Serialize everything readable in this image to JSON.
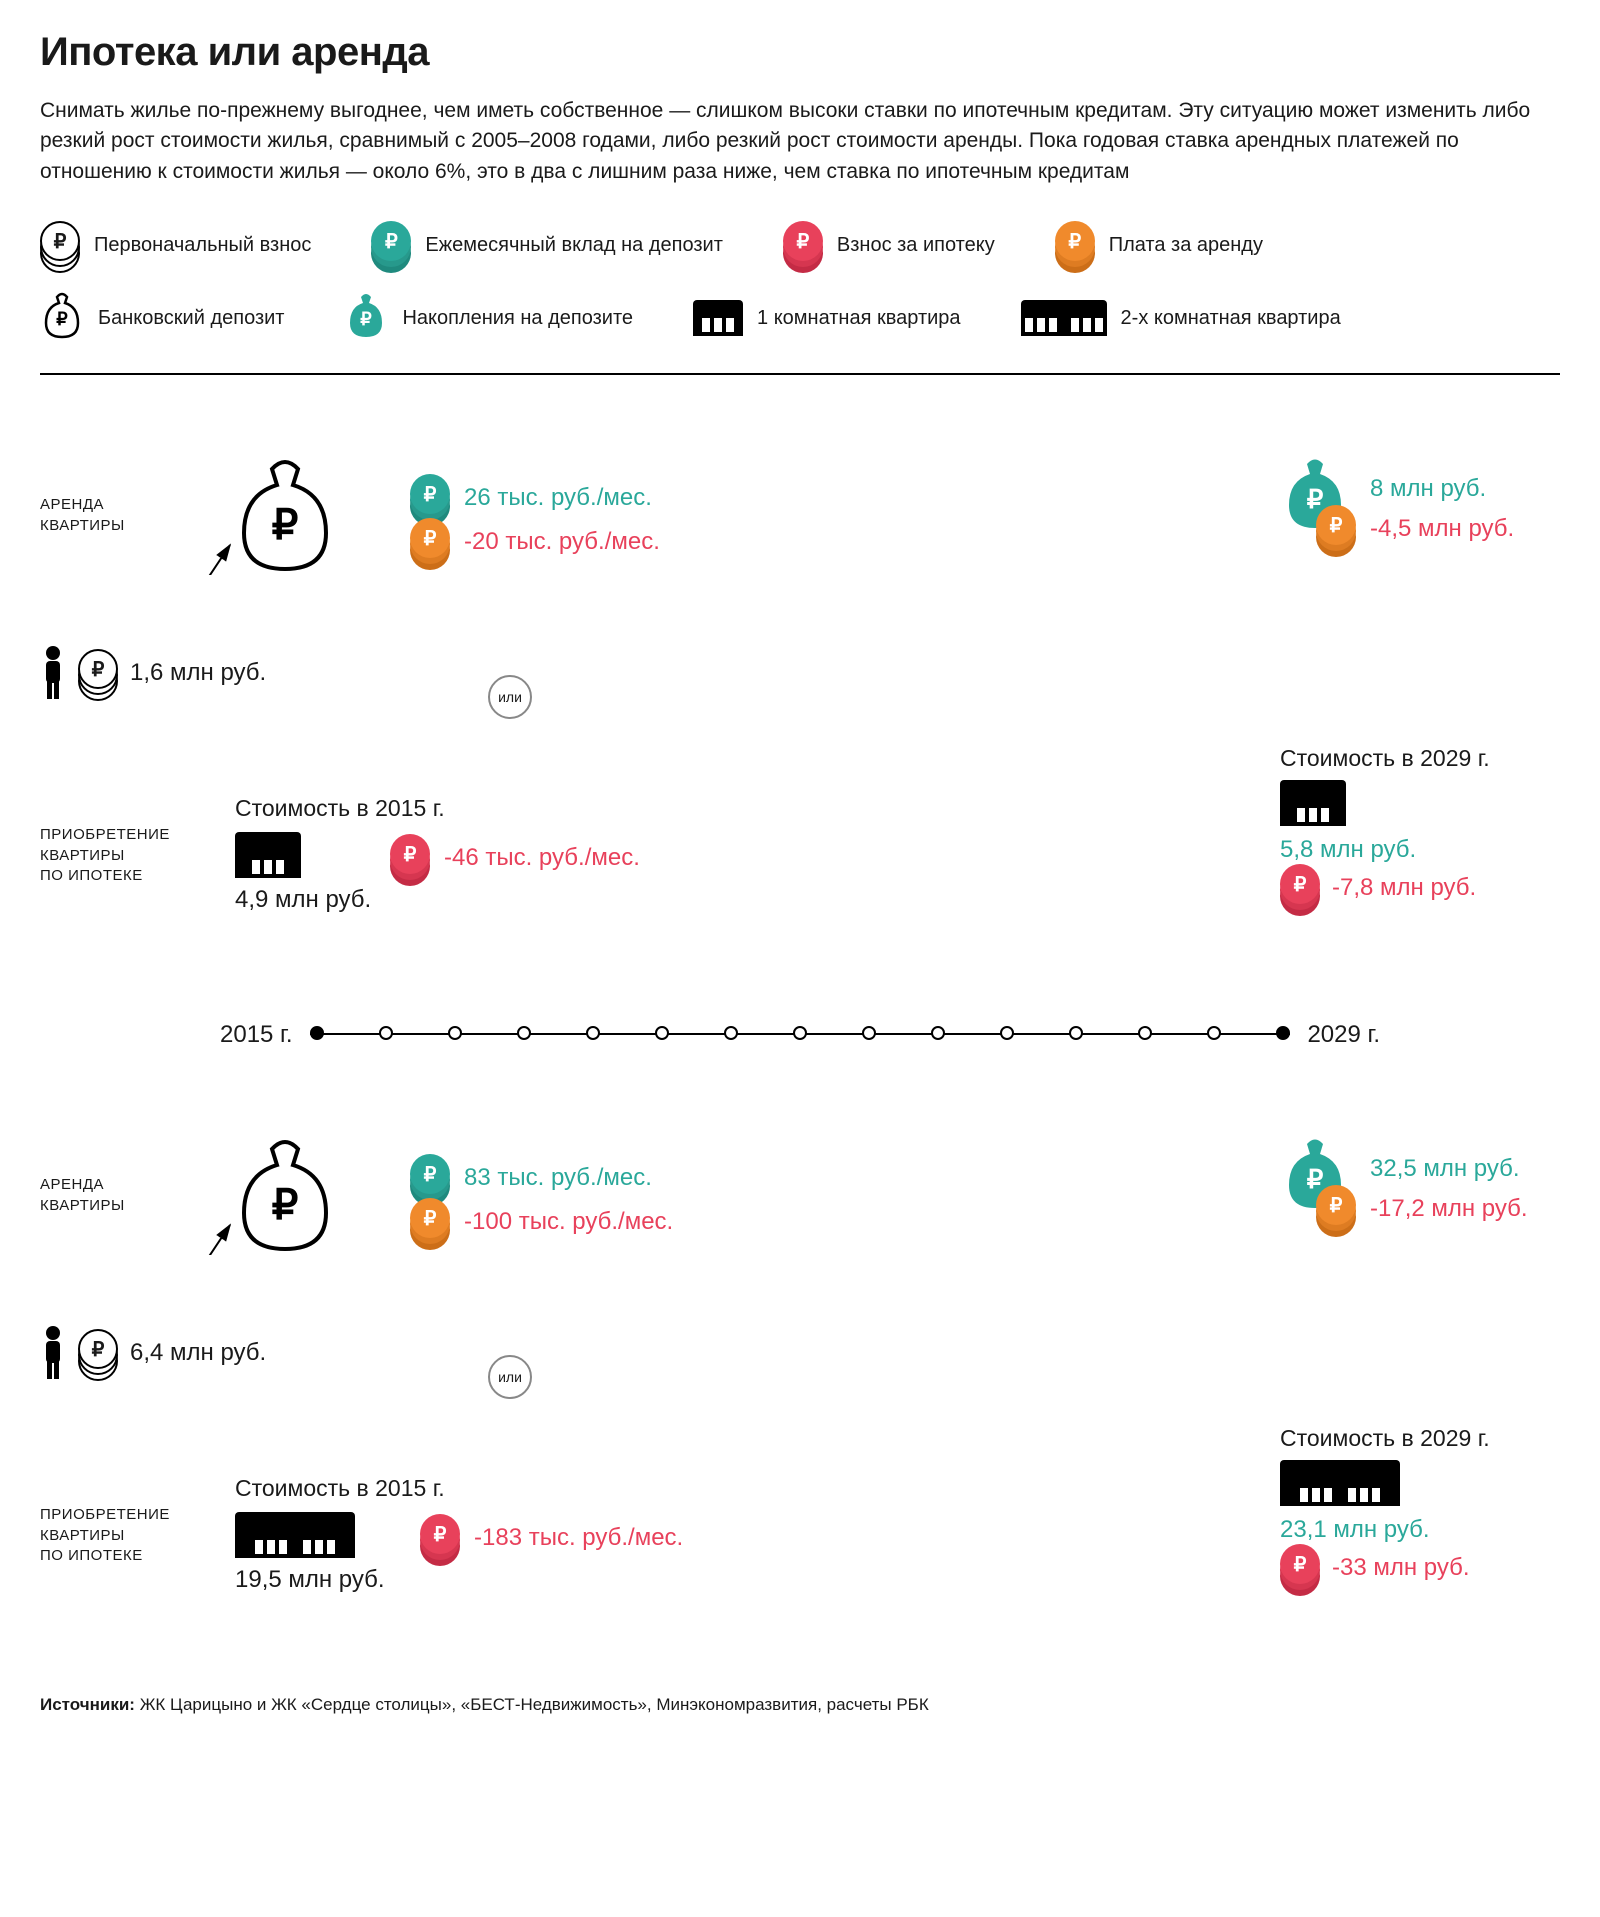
{
  "title": "Ипотека или аренда",
  "intro": "Снимать жилье по-прежнему выгоднее, чем иметь собственное — слишком высоки ставки по ипотечным кредитам. Эту ситуацию может изменить либо резкий рост стоимости жилья, сравнимый с 2005–2008 годами, либо резкий рост стоимости аренды. Пока годовая ставка арендных платежей по отношению к стоимости жилья — около 6%, это в два с лишним раза ниже, чем ставка по ипотечным кредитам",
  "legend": {
    "initial_deposit": "Первоначальный взнос",
    "monthly_deposit": "Ежемесячный вклад на депозит",
    "mortgage_payment": "Взнос за ипотеку",
    "rent_payment": "Плата за аренду",
    "bank_deposit": "Банковский депозит",
    "savings": "Накопления на депозите",
    "one_room": "1 комнатная квартира",
    "two_room": "2-х комнатная квартира"
  },
  "colors": {
    "white_coin_fill": "#ffffff",
    "white_coin_stroke": "#000000",
    "green": "#2aa89a",
    "green_dark": "#1f8a7e",
    "red": "#e8415b",
    "red_dark": "#c42b45",
    "orange": "#f08a2c",
    "orange_dark": "#cc6e18",
    "black": "#000000",
    "grey_line": "#888888"
  },
  "or_label": "или",
  "timeline": {
    "start": "2015 г.",
    "end": "2029 г.",
    "ticks": 14
  },
  "scenarios": [
    {
      "rent_label": "АРЕНДА\nКВАРТИРЫ",
      "buy_label": "ПРИОБРЕТЕНИЕ\nКВАРТИРЫ\nПО ИПОТЕКЕ",
      "start_amount": "1,6 млн руб.",
      "apt_rooms": 1,
      "rent_monthly_deposit": "26 тыс. руб./мес.",
      "rent_monthly_pay": "-20 тыс. руб./мес.",
      "cost_2015_label": "Стоимость в 2015 г.",
      "cost_2015_amount": "4,9 млн руб.",
      "buy_monthly_pay": "-46 тыс. руб./мес.",
      "result_savings": "8 млн руб.",
      "result_rent_total": "-4,5 млн руб.",
      "cost_2029_label": "Стоимость в 2029 г.",
      "cost_2029_amount": "5,8 млн руб.",
      "result_mortgage_total": "-7,8 млн руб."
    },
    {
      "rent_label": "АРЕНДА\nКВАРТИРЫ",
      "buy_label": "ПРИОБРЕТЕНИЕ\nКВАРТИРЫ\nПО ИПОТЕКЕ",
      "start_amount": "6,4 млн руб.",
      "apt_rooms": 2,
      "rent_monthly_deposit": "83 тыс. руб./мес.",
      "rent_monthly_pay": "-100 тыс. руб./мес.",
      "cost_2015_label": "Стоимость в 2015 г.",
      "cost_2015_amount": "19,5 млн руб.",
      "buy_monthly_pay": "-183 тыс. руб./мес.",
      "result_savings": "32,5 млн руб.",
      "result_rent_total": "-17,2 млн руб.",
      "cost_2029_label": "Стоимость в 2029 г.",
      "cost_2029_amount": "23,1 млн руб.",
      "result_mortgage_total": "-33 млн руб."
    }
  ],
  "sources_label": "Источники:",
  "sources_text": "ЖК Царицыно и ЖК «Сердце столицы», «БЕСТ-Недвижимость», Минэкономразвития, расчеты РБК"
}
